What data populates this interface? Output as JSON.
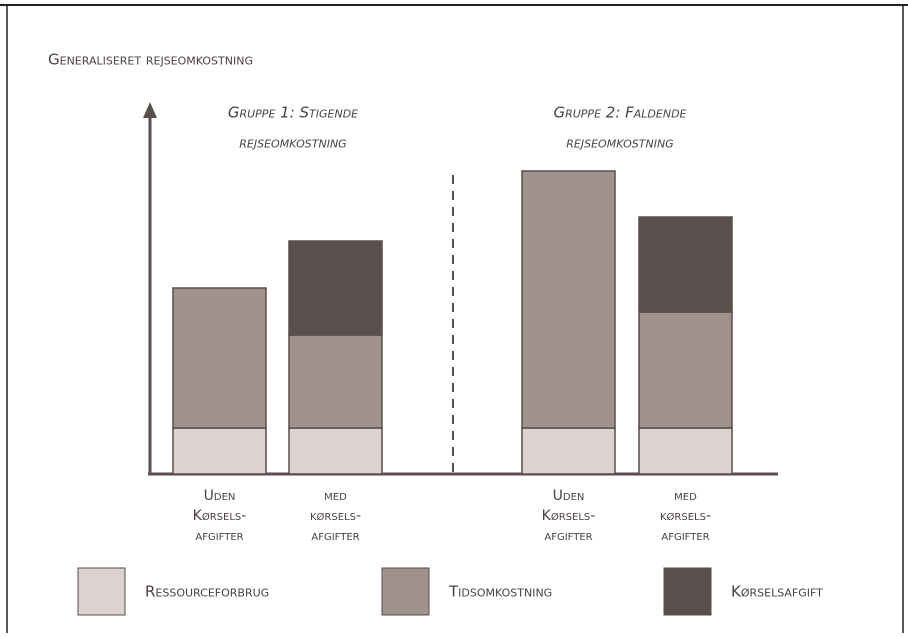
{
  "chart_data": {
    "type": "stacked-bar",
    "ylabel": "Generaliseret rejseomkostning",
    "group_labels": [
      [
        "Gruppe 1: Stigende",
        "rejseomkostning"
      ],
      [
        "Gruppe 2: Faldende",
        "rejseomkostning"
      ]
    ],
    "categories": [
      [
        "Uden",
        "Kørsels-",
        "afgifter"
      ],
      [
        "med",
        "kørsels-",
        "afgifter"
      ],
      [
        "Uden",
        "Kørsels-",
        "afgifter"
      ],
      [
        "med",
        "kørsels-",
        "afgifter"
      ]
    ],
    "series": [
      {
        "name": "Ressourceforbrug",
        "color": "#dcd2cf",
        "values": [
          46,
          46,
          46,
          46
        ]
      },
      {
        "name": "Tidsomkostning",
        "color": "#a0928d",
        "values": [
          140,
          93,
          257,
          116
        ]
      },
      {
        "name": "Kørselsafgift",
        "color": "#5a4f4c",
        "values": [
          null,
          94,
          null,
          95
        ]
      }
    ],
    "ylim": [
      0,
      369
    ]
  }
}
